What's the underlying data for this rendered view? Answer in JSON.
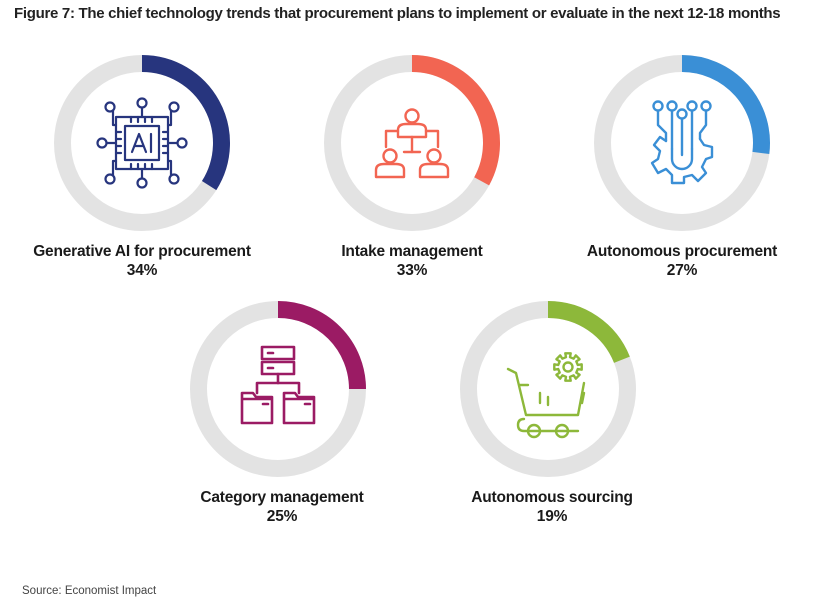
{
  "title": "Figure 7: The chief technology trends that procurement plans to implement or evaluate in the next 12-18 months",
  "source": "Source: Economist Impact",
  "chart_data": {
    "type": "pie",
    "subtype": "donut-progress",
    "title": "Figure 7: The chief technology trends that procurement plans to implement or evaluate in the next 12-18 months",
    "unit": "%",
    "track_color": "#e3e3e3",
    "items": [
      {
        "label": "Generative AI for procurement",
        "value": 34,
        "display": "34%",
        "color": "#27357e",
        "icon": "ai-chip-icon"
      },
      {
        "label": "Intake management",
        "value": 33,
        "display": "33%",
        "color": "#f26552",
        "icon": "org-hierarchy-icon"
      },
      {
        "label": "Autonomous procurement",
        "value": 27,
        "display": "27%",
        "color": "#3a8fd6",
        "icon": "circuit-gear-icon"
      },
      {
        "label": "Category management",
        "value": 25,
        "display": "25%",
        "color": "#9b1b64",
        "icon": "folder-hierarchy-icon"
      },
      {
        "label": "Autonomous sourcing",
        "value": 19,
        "display": "19%",
        "color": "#8db83a",
        "icon": "cart-gear-icon"
      }
    ]
  }
}
